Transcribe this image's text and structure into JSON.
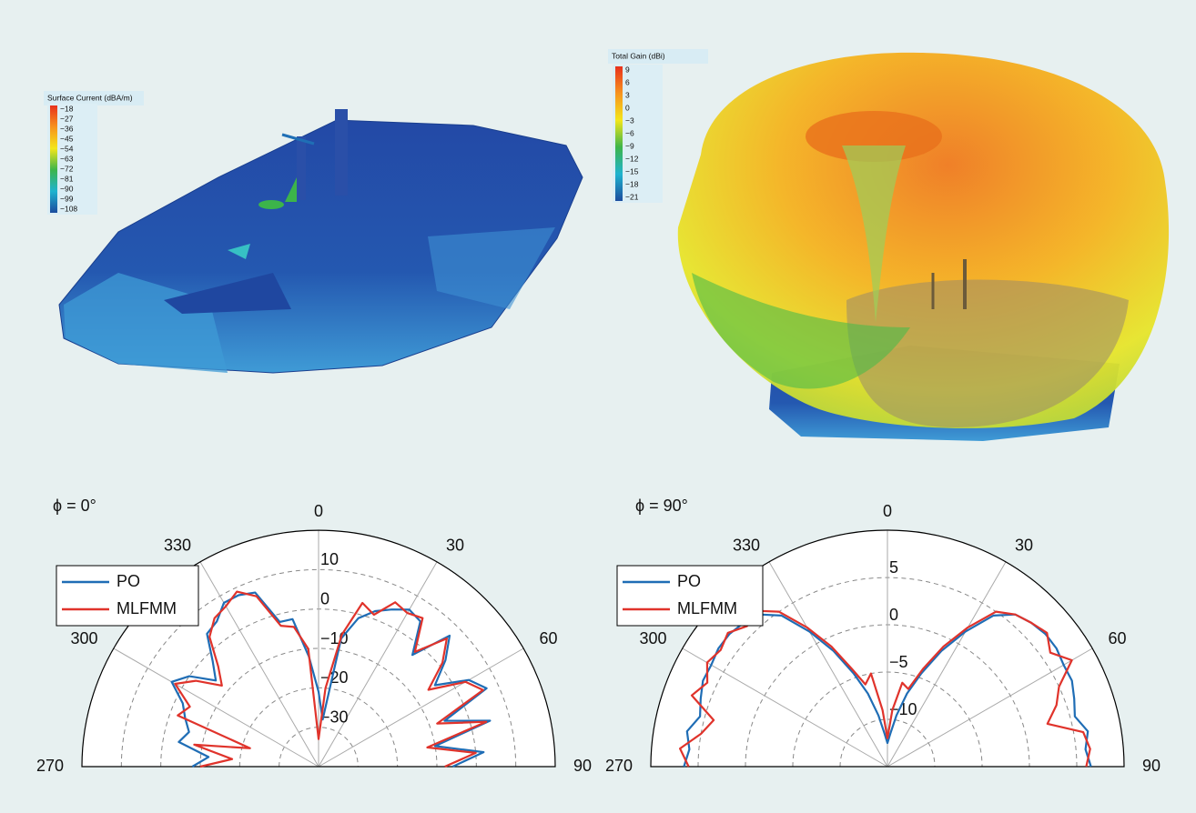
{
  "chart_data": [
    {
      "type": "colorbar",
      "title": "Surface Current (dBA/m)",
      "clim": [
        -108,
        -18
      ],
      "colormap": [
        "#e8311c",
        "#f7931e",
        "#f3e61b",
        "#3db54a",
        "#1fb3cf",
        "#1c4c9e"
      ],
      "ticks": [
        {
          "value": -18,
          "label": "−18"
        },
        {
          "value": -27,
          "label": "−27"
        },
        {
          "value": -36,
          "label": "−36"
        },
        {
          "value": -45,
          "label": "−45"
        },
        {
          "value": -54,
          "label": "−54"
        },
        {
          "value": -63,
          "label": "−63"
        },
        {
          "value": -72,
          "label": "−72"
        },
        {
          "value": -81,
          "label": "−81"
        },
        {
          "value": -90,
          "label": "−90"
        },
        {
          "value": -99,
          "label": "−99"
        },
        {
          "value": -108,
          "label": "−108"
        }
      ]
    },
    {
      "type": "colorbar",
      "title": "Total Gain (dBi)",
      "clim": [
        -21,
        9
      ],
      "colormap": [
        "#e8311c",
        "#f7931e",
        "#f3e61b",
        "#3db54a",
        "#1fb3cf",
        "#1c4c9e"
      ],
      "ticks": [
        9,
        6,
        3,
        0,
        {
          "value": -3,
          "label": "−3"
        },
        {
          "value": -6,
          "label": "−6"
        },
        {
          "value": -9,
          "label": "−9"
        },
        {
          "value": -12,
          "label": "−12"
        },
        {
          "value": -15,
          "label": "−15"
        },
        {
          "value": -18,
          "label": "−18"
        },
        {
          "value": -21,
          "label": "−21"
        }
      ]
    },
    {
      "type": "polar",
      "title": "ϕ = 0°",
      "rlim": [
        -40,
        20
      ],
      "rticks": [
        10,
        0,
        {
          "value": -10,
          "label": "−10"
        },
        {
          "value": -20,
          "label": "−20"
        },
        {
          "value": -30,
          "label": "−30"
        }
      ],
      "angle_ticks": [
        270,
        300,
        330,
        0,
        30,
        60,
        90
      ],
      "legend": "upper left",
      "theta": [
        270,
        275,
        280,
        285,
        290,
        295,
        300,
        305,
        310,
        315,
        320,
        325,
        330,
        335,
        340,
        345,
        350,
        355,
        0,
        5,
        10,
        15,
        20,
        25,
        30,
        35,
        40,
        45,
        50,
        55,
        60,
        65,
        70,
        75,
        80,
        85,
        90
      ],
      "series": [
        {
          "name": "PO",
          "color": "#1f6db5",
          "values": [
            -8,
            -12,
            -4,
            -6,
            -4,
            -2,
            3,
            0,
            -6,
            -2,
            4,
            5,
            8,
            8,
            7,
            -2,
            -2,
            -12,
            -21,
            -28,
            -7,
            -1,
            2,
            4,
            6,
            5,
            -3,
            7,
            2,
            -4,
            4,
            7,
            -6,
            5,
            -10,
            2,
            -6
          ]
        },
        {
          "name": "MLFMM",
          "color": "#e0332b",
          "values": [
            -10,
            -18,
            -8,
            -22,
            -2,
            -4,
            2,
            -2,
            -8,
            -4,
            3,
            6,
            7,
            9,
            6,
            -3,
            -4,
            -10,
            -33,
            -20,
            -6,
            3,
            1,
            6,
            5,
            6,
            -2,
            6,
            1,
            -6,
            3,
            6,
            -8,
            4,
            -12,
            0,
            -8
          ]
        }
      ]
    },
    {
      "type": "polar",
      "title": "ϕ = 90°",
      "rlim": [
        -15,
        10
      ],
      "rticks": [
        5,
        0,
        {
          "value": -5,
          "label": "−5"
        },
        {
          "value": -10,
          "label": "−10"
        }
      ],
      "angle_ticks": [
        270,
        300,
        330,
        0,
        30,
        60,
        90
      ],
      "legend": "upper left",
      "theta": [
        270,
        275,
        280,
        285,
        290,
        295,
        300,
        305,
        310,
        315,
        320,
        325,
        330,
        335,
        340,
        345,
        350,
        355,
        0,
        5,
        10,
        15,
        20,
        25,
        30,
        35,
        40,
        45,
        50,
        55,
        60,
        65,
        70,
        75,
        80,
        85,
        90
      ],
      "series": [
        {
          "name": "PO",
          "color": "#1f6db5",
          "values": [
            6.5,
            6,
            6.5,
            5.5,
            6,
            6.5,
            6.5,
            6.8,
            6.8,
            6.5,
            6,
            4.5,
            1.5,
            -1.5,
            -4.5,
            -7,
            -9.5,
            -11.5,
            -12.5,
            -11.5,
            -9.5,
            -7,
            -4.5,
            -1.5,
            1.5,
            4.5,
            6,
            6.5,
            6.8,
            6.8,
            6.5,
            6.5,
            6,
            5.5,
            6.5,
            6,
            6.5
          ]
        },
        {
          "name": "MLFMM",
          "color": "#e0332b",
          "values": [
            6,
            7,
            5,
            4,
            7,
            6,
            7,
            6.5,
            7,
            6,
            6.5,
            5,
            2,
            -1,
            -4,
            -6,
            -5,
            -9,
            -12,
            -9,
            -6,
            -6.5,
            -4,
            -1,
            2,
            5,
            6,
            6.5,
            7,
            6,
            7.5,
            5,
            4,
            2.5,
            6,
            6.5,
            6
          ]
        }
      ]
    }
  ]
}
